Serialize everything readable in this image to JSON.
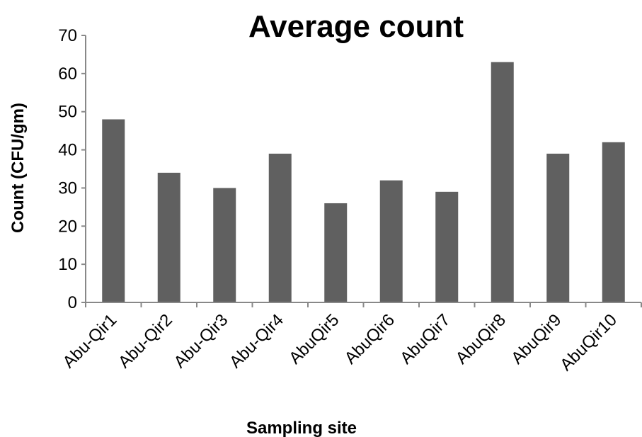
{
  "chart_data": {
    "type": "bar",
    "title": "Average count",
    "xlabel": "Sampling site",
    "ylabel": "Count (CFU/gm)",
    "categories": [
      "Abu-Qir1",
      "Abu-Qir2",
      "Abu-Qir3",
      "Abu-Qir4",
      "AbuQir5",
      "AbuQir6",
      "AbuQir7",
      "AbuQir8",
      "AbuQir9",
      "AbuQir10"
    ],
    "values": [
      48,
      34,
      30,
      39,
      26,
      32,
      29,
      63,
      39,
      42
    ],
    "ylim": [
      0,
      70
    ],
    "yticks": [
      0,
      10,
      20,
      30,
      40,
      50,
      60,
      70
    ],
    "grid": false,
    "legend": "none",
    "bar_color": "#606060"
  }
}
